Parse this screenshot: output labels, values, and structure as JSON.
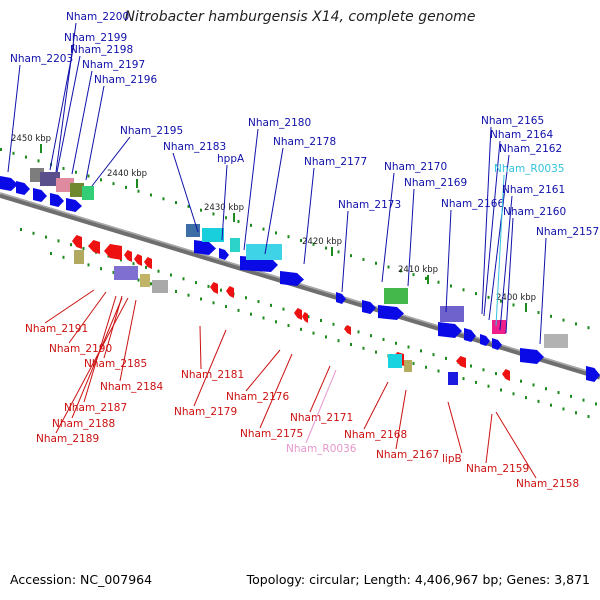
{
  "title": "Nitrobacter hamburgensis X14, complete genome",
  "footer": {
    "accession": "Accession: NC_007964",
    "summary": "Topology: circular; Length: 4,406,967 bp; Genes: 3,871"
  },
  "colors": {
    "forward_label": "#1010aa",
    "reverse_label": "#cc1111",
    "rna_label_fwd": "#33c3dd",
    "rna_label_rev": "#e597cc",
    "forward_cds": "#0a0ae6",
    "reverse_cds": "#ee1111",
    "backbone": "#808080",
    "tick": "#1d8a1d"
  },
  "scale_labels": [
    "2450 kbp",
    "2440 kbp",
    "2430 kbp",
    "2420 kbp",
    "2410 kbp",
    "2400 kbp"
  ],
  "forward_genes": [
    {
      "name": "Nham_2200"
    },
    {
      "name": "Nham_2199"
    },
    {
      "name": "Nham_2198"
    },
    {
      "name": "Nham_2203"
    },
    {
      "name": "Nham_2197"
    },
    {
      "name": "Nham_2196"
    },
    {
      "name": "Nham_2195"
    },
    {
      "name": "Nham_2183"
    },
    {
      "name": "Nham_2180"
    },
    {
      "name": "hppA"
    },
    {
      "name": "Nham_2178"
    },
    {
      "name": "Nham_2177"
    },
    {
      "name": "Nham_2173"
    },
    {
      "name": "Nham_2170"
    },
    {
      "name": "Nham_2169"
    },
    {
      "name": "Nham_2166"
    },
    {
      "name": "Nham_2165"
    },
    {
      "name": "Nham_2164"
    },
    {
      "name": "Nham_2162"
    },
    {
      "name": "Nham_R0035"
    },
    {
      "name": "Nham_2161"
    },
    {
      "name": "Nham_2160"
    },
    {
      "name": "Nham_2157"
    }
  ],
  "reverse_genes": [
    {
      "name": "Nham_2191"
    },
    {
      "name": "Nham_2190"
    },
    {
      "name": "Nham_2185"
    },
    {
      "name": "Nham_2184"
    },
    {
      "name": "Nham_2187"
    },
    {
      "name": "Nham_2188"
    },
    {
      "name": "Nham_2189"
    },
    {
      "name": "Nham_2181"
    },
    {
      "name": "Nham_2179"
    },
    {
      "name": "Nham_2176"
    },
    {
      "name": "Nham_2175"
    },
    {
      "name": "Nham_2171"
    },
    {
      "name": "Nham_R0036"
    },
    {
      "name": "Nham_2168"
    },
    {
      "name": "Nham_2167"
    },
    {
      "name": "lipB"
    },
    {
      "name": "Nham_2159"
    },
    {
      "name": "Nham_2158"
    }
  ]
}
